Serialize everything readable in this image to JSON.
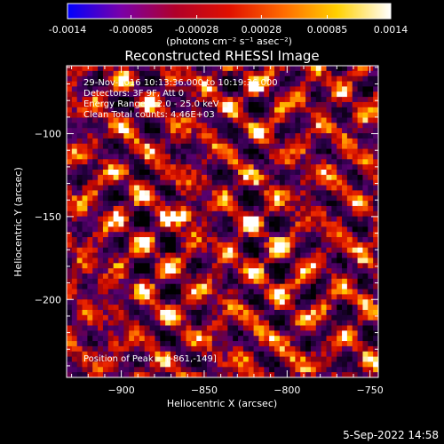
{
  "colorbar": {
    "tick_labels": [
      "-0.0014",
      "-0.00085",
      "-0.00028",
      "0.00028",
      "0.00085",
      "0.0014"
    ],
    "tick_values": [
      -0.0014,
      -0.00085,
      -0.00028,
      0.00028,
      0.00085,
      0.0014
    ],
    "range": [
      -0.0014,
      0.0014
    ],
    "label": "(photons cm⁻² s⁻¹ asec⁻²)",
    "gradient_colors": [
      "#0000ff",
      "#7a00a8",
      "#b0002a",
      "#e01000",
      "#ff6a00",
      "#ffd000",
      "#ffffff"
    ]
  },
  "chart_data": {
    "type": "heatmap",
    "title": "Reconstructed RHESSI Image",
    "xlabel": "Heliocentric X (arcsec)",
    "ylabel": "Heliocentric Y (arcsec)",
    "xlim": [
      -933,
      -745
    ],
    "ylim": [
      -247,
      -59
    ],
    "xticks": [
      -900,
      -850,
      -800,
      -750
    ],
    "yticks": [
      -100,
      -150,
      -200
    ],
    "xtick_labels": [
      "−900",
      "−850",
      "−800",
      "−750"
    ],
    "ytick_labels": [
      "−100",
      "−150",
      "−200"
    ],
    "colormap_range": [
      -0.0014,
      0.0014
    ],
    "peak": {
      "x": -861,
      "y": -149
    },
    "annotations": {
      "line1": "29-Nov-2016 10:13:36.000 to 10:19:36.000",
      "line2": "Detectors: 3F 9F, Att 0",
      "line3": "Energy Range: 12.0 - 25.0 keV",
      "line4": "Clean     Total counts: 4.46E+03",
      "peak_text": "Position of Peak = [-861,-149]"
    },
    "grid": false
  },
  "footer": {
    "date": "5-Sep-2022 14:58"
  }
}
